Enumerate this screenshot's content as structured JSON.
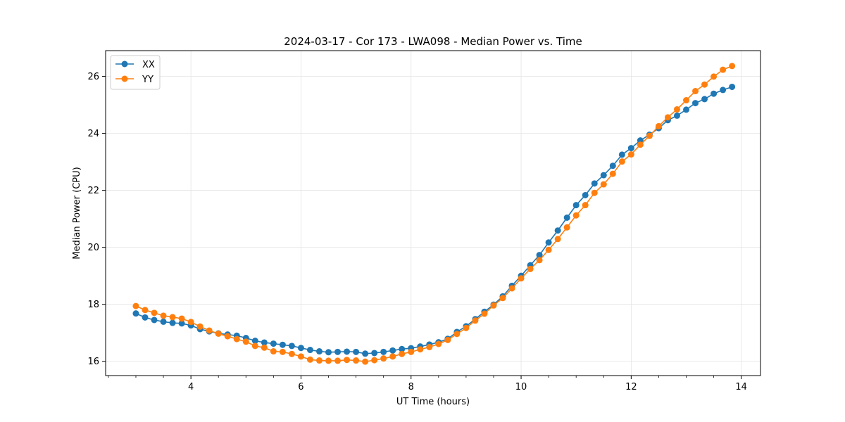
{
  "chart_data": {
    "type": "line",
    "title": "2024-03-17 - Cor 173 - LWA098 - Median Power vs. Time",
    "xlabel": "UT Time (hours)",
    "ylabel": "Median Power (CPU)",
    "xlim": [
      2.45,
      14.35
    ],
    "ylim": [
      15.5,
      26.9
    ],
    "xticks": [
      4,
      6,
      8,
      10,
      12,
      14
    ],
    "xtick_labels": [
      "4",
      "6",
      "8",
      "10",
      "12",
      "14"
    ],
    "xminor_step": 0.5,
    "yticks": [
      16,
      18,
      20,
      22,
      24,
      26
    ],
    "ytick_labels": [
      "16",
      "18",
      "20",
      "22",
      "24",
      "26"
    ],
    "grid": true,
    "legend_position": "top-left",
    "colors": {
      "XX": "#1f77b4",
      "YY": "#ff7f0e"
    },
    "series": [
      {
        "name": "XX",
        "x": [
          3.0,
          3.1667,
          3.3333,
          3.5,
          3.6667,
          3.8333,
          4.0,
          4.1667,
          4.3333,
          4.5,
          4.6667,
          4.8333,
          5.0,
          5.1667,
          5.3333,
          5.5,
          5.6667,
          5.8333,
          6.0,
          6.1667,
          6.3333,
          6.5,
          6.6667,
          6.8333,
          7.0,
          7.1667,
          7.3333,
          7.5,
          7.6667,
          7.8333,
          8.0,
          8.1667,
          8.3333,
          8.5,
          8.6667,
          8.8333,
          9.0,
          9.1667,
          9.3333,
          9.5,
          9.6667,
          9.8333,
          10.0,
          10.1667,
          10.3333,
          10.5,
          10.6667,
          10.8333,
          11.0,
          11.1667,
          11.3333,
          11.5,
          11.6667,
          11.8333,
          12.0,
          12.1667,
          12.3333,
          12.5,
          12.6667,
          12.8333,
          13.0,
          13.1667,
          13.3333,
          13.5,
          13.6667,
          13.8333
        ],
        "values": [
          17.68,
          17.54,
          17.45,
          17.39,
          17.35,
          17.33,
          17.26,
          17.13,
          17.05,
          16.98,
          16.94,
          16.9,
          16.82,
          16.72,
          16.66,
          16.62,
          16.58,
          16.54,
          16.47,
          16.4,
          16.35,
          16.32,
          16.33,
          16.34,
          16.33,
          16.27,
          16.29,
          16.33,
          16.38,
          16.43,
          16.46,
          16.52,
          16.59,
          16.67,
          16.79,
          17.03,
          17.23,
          17.48,
          17.74,
          17.99,
          18.28,
          18.65,
          19.0,
          19.37,
          19.73,
          20.17,
          20.59,
          21.04,
          21.48,
          21.83,
          22.24,
          22.53,
          22.86,
          23.25,
          23.48,
          23.75,
          23.95,
          24.18,
          24.46,
          24.62,
          24.83,
          25.06,
          25.2,
          25.39,
          25.52,
          25.63
        ]
      },
      {
        "name": "YY",
        "x": [
          3.0,
          3.1667,
          3.3333,
          3.5,
          3.6667,
          3.8333,
          4.0,
          4.1667,
          4.3333,
          4.5,
          4.6667,
          4.8333,
          5.0,
          5.1667,
          5.3333,
          5.5,
          5.6667,
          5.8333,
          6.0,
          6.1667,
          6.3333,
          6.5,
          6.6667,
          6.8333,
          7.0,
          7.1667,
          7.3333,
          7.5,
          7.6667,
          7.8333,
          8.0,
          8.1667,
          8.3333,
          8.5,
          8.6667,
          8.8333,
          9.0,
          9.1667,
          9.3333,
          9.5,
          9.6667,
          9.8333,
          10.0,
          10.1667,
          10.3333,
          10.5,
          10.6667,
          10.8333,
          11.0,
          11.1667,
          11.3333,
          11.5,
          11.6667,
          11.8333,
          12.0,
          12.1667,
          12.3333,
          12.5,
          12.6667,
          12.8333,
          13.0,
          13.1667,
          13.3333,
          13.5,
          13.6667,
          13.8333
        ],
        "values": [
          17.94,
          17.8,
          17.7,
          17.6,
          17.55,
          17.5,
          17.38,
          17.22,
          17.08,
          16.97,
          16.88,
          16.78,
          16.69,
          16.54,
          16.48,
          16.35,
          16.33,
          16.26,
          16.17,
          16.06,
          16.03,
          16.02,
          16.02,
          16.05,
          16.03,
          15.99,
          16.04,
          16.1,
          16.17,
          16.26,
          16.33,
          16.42,
          16.5,
          16.61,
          16.75,
          16.96,
          17.17,
          17.43,
          17.67,
          17.96,
          18.22,
          18.56,
          18.91,
          19.24,
          19.55,
          19.91,
          20.29,
          20.7,
          21.12,
          21.48,
          21.91,
          22.21,
          22.58,
          23.01,
          23.26,
          23.6,
          23.91,
          24.25,
          24.56,
          24.84,
          25.16,
          25.48,
          25.71,
          25.99,
          26.23,
          26.36
        ]
      }
    ]
  }
}
